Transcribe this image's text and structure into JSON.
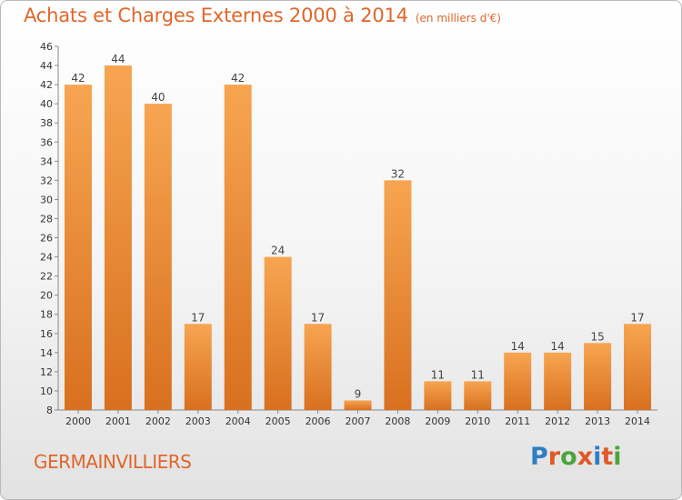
{
  "header": {
    "title": "Achats et Charges Externes 2000 à 2014",
    "subtitle": "(en milliers d'€)"
  },
  "footer": {
    "commune": "GERMAINVILLIERS",
    "logo_text": "Proxiti",
    "logo_colors": [
      "#2f7fc1",
      "#e05a28",
      "#4aa63c",
      "#e05a28",
      "#2f7fc1",
      "#e05a28",
      "#4aa63c"
    ]
  },
  "colors": {
    "bar_light": "#f7a551",
    "bar_dark": "#d8701f",
    "title": "#e0662b"
  },
  "chart_data": {
    "type": "bar",
    "title": "Achats et Charges Externes 2000 à 2014",
    "subtitle": "(en milliers d'€)",
    "categories": [
      "2000",
      "2001",
      "2002",
      "2003",
      "2004",
      "2005",
      "2006",
      "2007",
      "2008",
      "2009",
      "2010",
      "2011",
      "2012",
      "2013",
      "2014"
    ],
    "values": [
      42,
      44,
      40,
      17,
      42,
      24,
      17,
      9,
      32,
      11,
      11,
      14,
      14,
      15,
      17
    ],
    "ylim": [
      8,
      46
    ],
    "yticks": [
      8,
      10,
      12,
      14,
      16,
      18,
      20,
      22,
      24,
      26,
      28,
      30,
      32,
      34,
      36,
      38,
      40,
      42,
      44,
      46
    ],
    "grid": false,
    "data_labels": true
  }
}
